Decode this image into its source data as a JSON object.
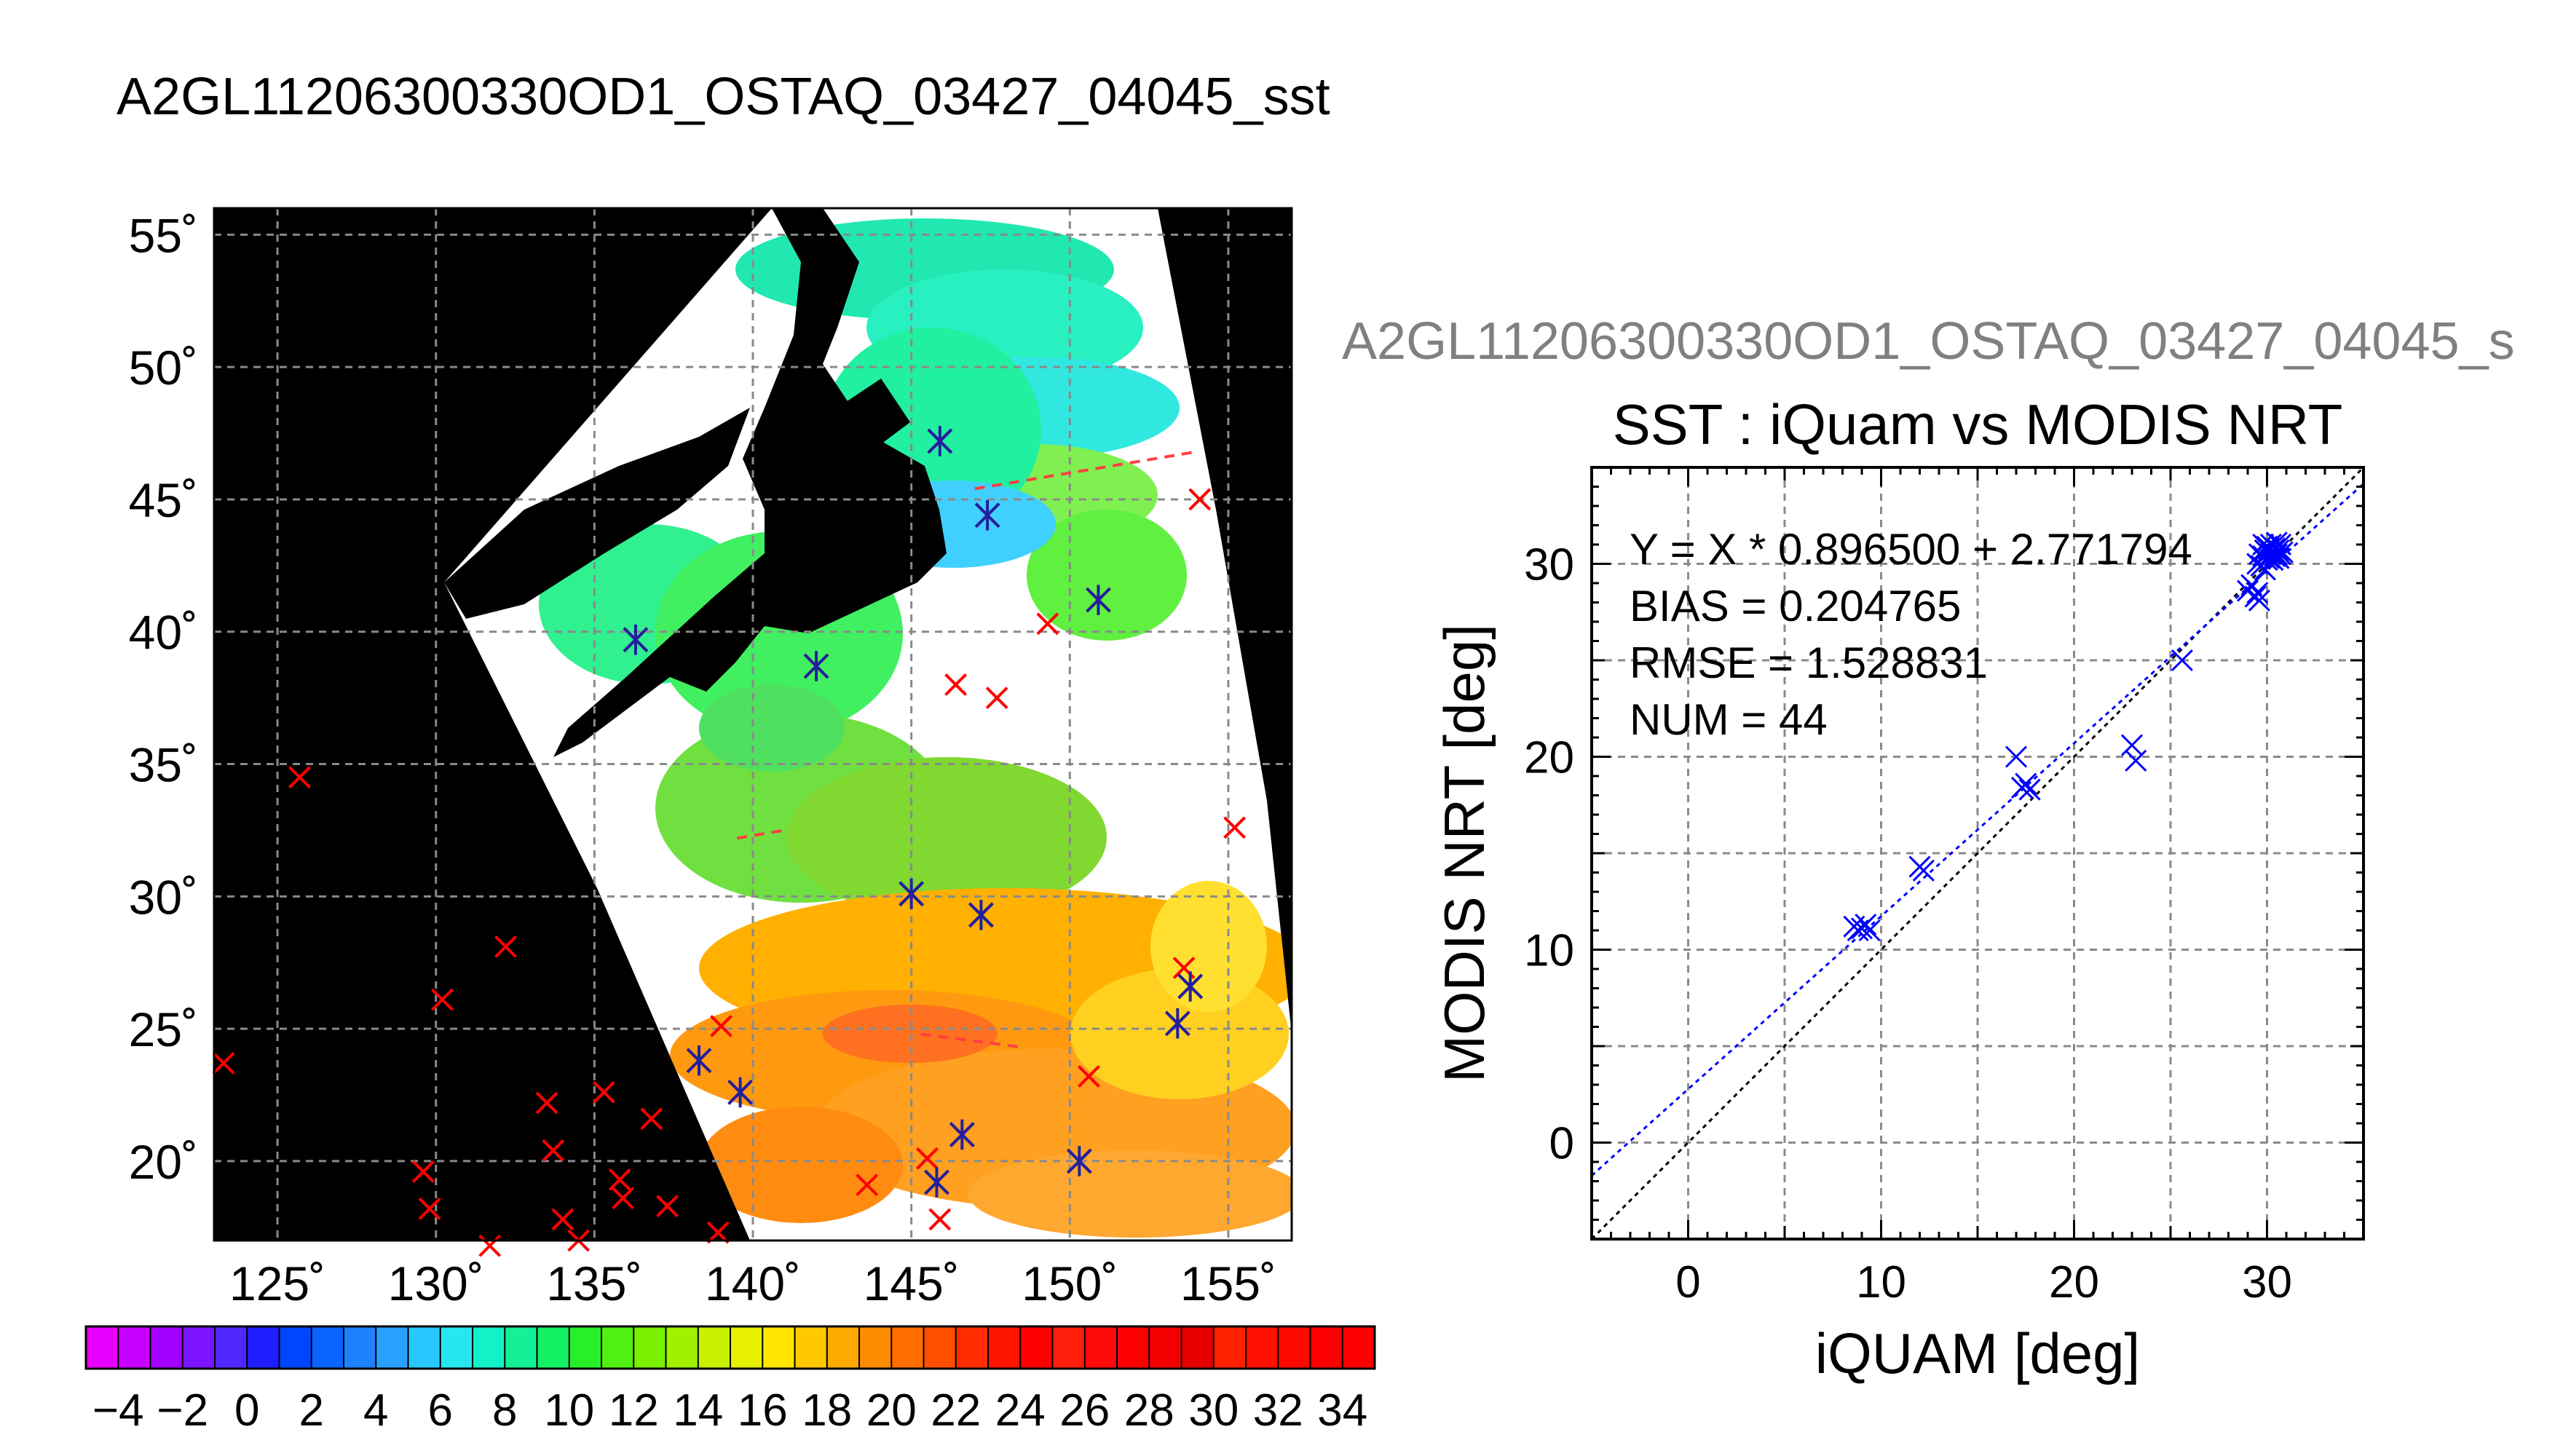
{
  "figure_title": "A2GL11206300330OD1_OSTAQ_03427_04045_sst",
  "scatter_header": "A2GL11206300330OD1_OSTAQ_03427_04045_s",
  "colors": {
    "map_background": "#000000",
    "swath_fill": "#ffffff",
    "iquam_marker": "#ff0000",
    "modis_marker": "#2020a0",
    "scatter_marker": "#0000ff",
    "fit_line": "#0000ff",
    "identity_line": "#000000"
  },
  "colorbar": {
    "tick_labels": [
      "-4",
      "-2",
      "0",
      "2",
      "4",
      "6",
      "8",
      "10",
      "12",
      "14",
      "16",
      "18",
      "20",
      "22",
      "24",
      "26",
      "28",
      "30",
      "32",
      "34"
    ],
    "min": -5,
    "max": 35,
    "swatches": [
      "#e600ff",
      "#c800ff",
      "#a300ff",
      "#7d14ff",
      "#5028ff",
      "#1e1eff",
      "#0046ff",
      "#0a64ff",
      "#1e82ff",
      "#28a0ff",
      "#28c8ff",
      "#28e6f0",
      "#14f0c8",
      "#14f096",
      "#14f064",
      "#28f028",
      "#50f014",
      "#78f000",
      "#a0f000",
      "#c8f000",
      "#e6f000",
      "#ffe600",
      "#ffc800",
      "#ffaa00",
      "#ff8c00",
      "#ff6e00",
      "#ff5000",
      "#ff2d00",
      "#ff1400",
      "#ff0000",
      "#ff1e0a",
      "#ff0a0a",
      "#ff0000",
      "#f50000",
      "#e60000",
      "#ff2000",
      "#ff1000",
      "#ff0800",
      "#ff0000",
      "#ff0000"
    ]
  },
  "chart_data": [
    {
      "type": "map",
      "name": "sst_swath_map",
      "lon_range": [
        123,
        157
      ],
      "lat_range": [
        17,
        56
      ],
      "lon_ticks": [
        "125˚",
        "130˚",
        "135˚",
        "140˚",
        "145˚",
        "150˚",
        "155˚"
      ],
      "lon_tick_values": [
        125,
        130,
        135,
        140,
        145,
        150,
        155
      ],
      "lat_ticks": [
        "55˚",
        "50˚",
        "45˚",
        "40˚",
        "35˚",
        "30˚",
        "25˚",
        "20˚"
      ],
      "lat_tick_values": [
        55,
        50,
        45,
        40,
        35,
        30,
        25,
        20
      ],
      "grid": true,
      "iquam_points": [
        [
          123.3,
          23.7
        ],
        [
          125.7,
          34.5
        ],
        [
          129.6,
          19.6
        ],
        [
          129.8,
          18.2
        ],
        [
          130.2,
          26.1
        ],
        [
          131.7,
          16.8
        ],
        [
          132.2,
          28.1
        ],
        [
          133.5,
          22.2
        ],
        [
          133.7,
          20.4
        ],
        [
          134.0,
          17.8
        ],
        [
          134.5,
          17.0
        ],
        [
          135.3,
          22.6
        ],
        [
          135.8,
          19.3
        ],
        [
          135.9,
          18.6
        ],
        [
          136.8,
          21.6
        ],
        [
          137.3,
          18.3
        ],
        [
          138.9,
          17.3
        ],
        [
          139.0,
          25.1
        ],
        [
          143.6,
          19.1
        ],
        [
          145.5,
          20.1
        ],
        [
          145.9,
          17.8
        ],
        [
          146.4,
          38.0
        ],
        [
          147.7,
          37.5
        ],
        [
          149.3,
          40.3
        ],
        [
          150.6,
          23.2
        ],
        [
          154.1,
          45.0
        ],
        [
          155.2,
          32.6
        ],
        [
          153.6,
          27.3
        ]
      ],
      "matchup_points": [
        [
          136.3,
          39.7
        ],
        [
          142.0,
          38.7
        ],
        [
          145.9,
          47.2
        ],
        [
          147.4,
          44.4
        ],
        [
          150.9,
          41.2
        ],
        [
          145.0,
          30.1
        ],
        [
          147.2,
          29.3
        ],
        [
          138.3,
          23.8
        ],
        [
          139.6,
          22.6
        ],
        [
          146.6,
          21.0
        ],
        [
          145.8,
          19.2
        ],
        [
          150.3,
          20.0
        ],
        [
          153.4,
          25.2
        ],
        [
          153.8,
          26.6
        ]
      ],
      "tracks": [
        [
          [
            145.3,
            24.8
          ],
          [
            148.5,
            24.3
          ]
        ],
        [
          [
            147.0,
            45.4
          ],
          [
            154.0,
            46.8
          ]
        ],
        [
          [
            139.5,
            32.2
          ],
          [
            141.0,
            32.5
          ]
        ]
      ]
    },
    {
      "type": "scatter",
      "name": "sst_iquam_vs_modis",
      "title": "SST : iQuam vs MODIS NRT",
      "xlabel": "iQUAM [deg]",
      "ylabel": "MODIS NRT [deg]",
      "xlim": [
        -5,
        35
      ],
      "ylim": [
        -5,
        35
      ],
      "x_ticks": [
        "0",
        "10",
        "20",
        "30"
      ],
      "x_tick_values": [
        0,
        10,
        20,
        30
      ],
      "y_ticks": [
        "0",
        "10",
        "20",
        "30"
      ],
      "y_tick_values": [
        0,
        10,
        20,
        30
      ],
      "grid": true,
      "stats": [
        "Y = X * 0.896500 + 2.771794",
        "BIAS = 0.204765",
        "RMSE = 1.528831",
        "NUM = 44"
      ],
      "fit": {
        "slope": 0.8965,
        "intercept": 2.771794
      },
      "points": [
        [
          8.6,
          11.2
        ],
        [
          8.8,
          11.0
        ],
        [
          9.0,
          11.1
        ],
        [
          9.2,
          11.3
        ],
        [
          9.4,
          11.0
        ],
        [
          12.0,
          14.3
        ],
        [
          12.2,
          14.1
        ],
        [
          17.0,
          20.0
        ],
        [
          17.3,
          18.4
        ],
        [
          17.5,
          18.6
        ],
        [
          17.7,
          18.3
        ],
        [
          23.0,
          20.6
        ],
        [
          23.2,
          19.8
        ],
        [
          25.6,
          25.0
        ],
        [
          29.0,
          28.6
        ],
        [
          29.2,
          28.9
        ],
        [
          29.4,
          28.3
        ],
        [
          29.5,
          28.5
        ],
        [
          29.6,
          28.1
        ],
        [
          29.5,
          30.0
        ],
        [
          29.6,
          30.5
        ],
        [
          29.7,
          29.9
        ],
        [
          29.8,
          30.4
        ],
        [
          29.9,
          30.7
        ],
        [
          29.8,
          31.0
        ],
        [
          30.0,
          30.2
        ],
        [
          30.0,
          30.6
        ],
        [
          30.1,
          30.3
        ],
        [
          30.2,
          30.5
        ],
        [
          30.1,
          30.8
        ],
        [
          30.2,
          31.0
        ],
        [
          30.3,
          30.2
        ],
        [
          30.3,
          30.6
        ],
        [
          30.4,
          30.4
        ],
        [
          30.4,
          30.8
        ],
        [
          30.5,
          30.5
        ],
        [
          30.5,
          31.1
        ],
        [
          30.6,
          30.3
        ],
        [
          30.6,
          30.7
        ],
        [
          30.7,
          30.5
        ],
        [
          30.7,
          31.0
        ],
        [
          30.8,
          30.6
        ],
        [
          29.9,
          29.7
        ],
        [
          30.0,
          30.9
        ]
      ]
    }
  ]
}
